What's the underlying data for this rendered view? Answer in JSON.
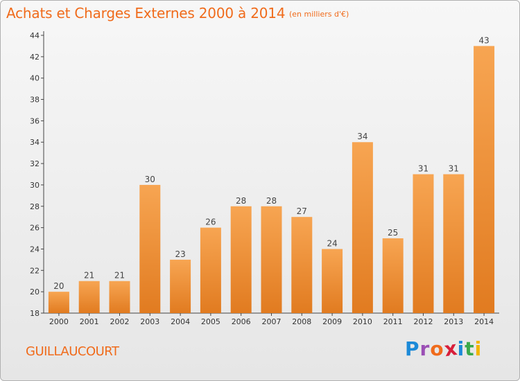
{
  "header": {
    "title": "Achats et Charges Externes 2000 à 2014",
    "subtitle": "(en milliers d'€)"
  },
  "footer": {
    "commune": "GUILLAUCOURT",
    "brand_letters": [
      "P",
      "r",
      "o",
      "x",
      "i",
      "t",
      "i"
    ],
    "brand_colors": [
      "#1c8ad8",
      "#9b4fb5",
      "#f06b1b",
      "#d81e3a",
      "#1c8ad8",
      "#3ba94b",
      "#f2b500"
    ]
  },
  "colors": {
    "accent": "#f06b1b",
    "bar_top": "#f7a552",
    "bar_bottom": "#e17b20",
    "axis": "#444444"
  },
  "chart_data": {
    "type": "bar",
    "title": "Achats et Charges Externes 2000 à 2014",
    "subtitle": "(en milliers d'€)",
    "categories": [
      "2000",
      "2001",
      "2002",
      "2003",
      "2004",
      "2005",
      "2006",
      "2007",
      "2008",
      "2009",
      "2010",
      "2011",
      "2012",
      "2013",
      "2014"
    ],
    "values": [
      20,
      21,
      21,
      30,
      23,
      26,
      28,
      28,
      27,
      24,
      34,
      25,
      31,
      31,
      43
    ],
    "ylim": [
      18,
      44
    ],
    "yticks": [
      18,
      20,
      22,
      24,
      26,
      28,
      30,
      32,
      34,
      36,
      38,
      40,
      42,
      44
    ],
    "grid": false,
    "data_labels": true
  }
}
